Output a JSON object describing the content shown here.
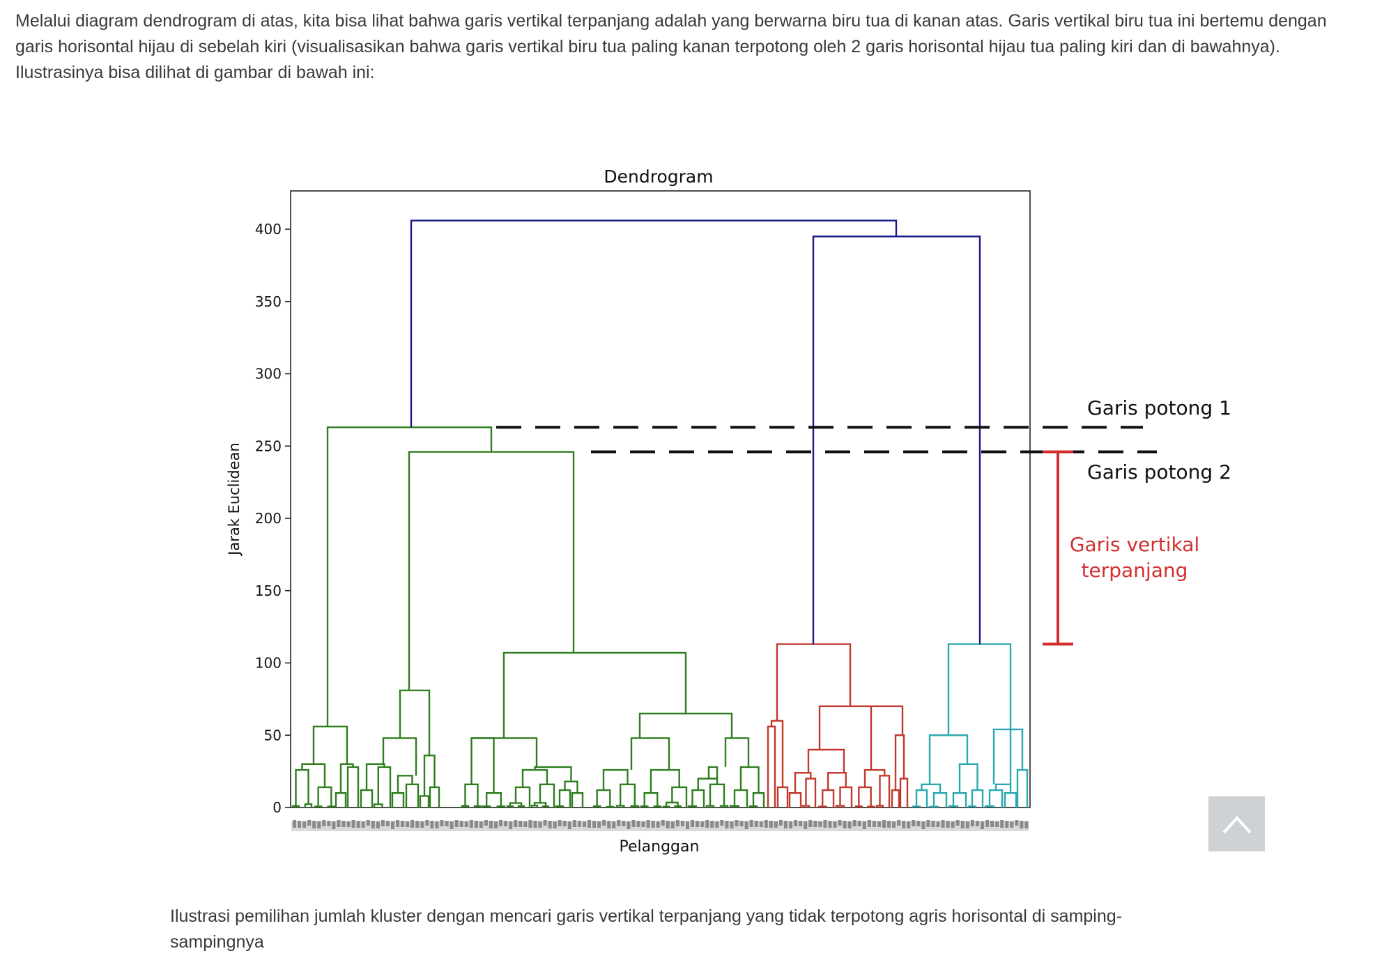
{
  "article": {
    "intro": "Melalui diagram dendrogram di atas, kita bisa lihat bahwa garis vertikal terpanjang adalah yang berwarna biru tua di kanan atas. Garis vertikal biru tua ini bertemu dengan garis horisontal hijau di sebelah kiri (visualisasikan bahwa garis vertikal biru tua paling kanan terpotong oleh 2 garis horisontal hijau tua paling kiri dan di bawahnya). Ilustrasinya bisa dilihat di gambar di bawah ini:",
    "caption": "Ilustrasi pemilihan jumlah kluster dengan mencari garis vertikal terpanjang yang tidak terpotong agris horisontal di samping-sampingnya"
  },
  "chart_data": {
    "type": "dendrogram",
    "title": "Dendrogram",
    "xlabel": "Pelanggan",
    "ylabel": "Jarak Euclidean",
    "ylim": [
      0,
      425
    ],
    "yticks": [
      0,
      50,
      100,
      150,
      200,
      250,
      300,
      350,
      400
    ],
    "leaf_count": 200,
    "colors": {
      "cluster_green": "#2e7d1e",
      "cluster_red": "#c0392b",
      "cluster_cyan": "#2aa8b0",
      "link_blue": "#1a1a8c",
      "annotation_red": "#d32f2f",
      "cut_line": "#111111"
    },
    "merge_heights": {
      "root": 406,
      "blue_right": 395,
      "green_top": 263,
      "green_second": 246,
      "green_right_sub": 107,
      "green_left_sub": 81,
      "green_leftmost": 56,
      "red_top": 113,
      "cyan_top": 113,
      "red_sub": 70,
      "green_mid_a": 65,
      "green_mid_b": 48
    },
    "cut_lines": [
      {
        "label": "Garis potong 1",
        "y": 263
      },
      {
        "label": "Garis potong 2",
        "y": 246
      }
    ],
    "longest_vertical": {
      "label_line1": "Garis vertikal",
      "label_line2": "terpanjang",
      "from": 113,
      "to": 246
    }
  },
  "ui": {
    "scroll_top_icon": "chevron-up-icon"
  }
}
